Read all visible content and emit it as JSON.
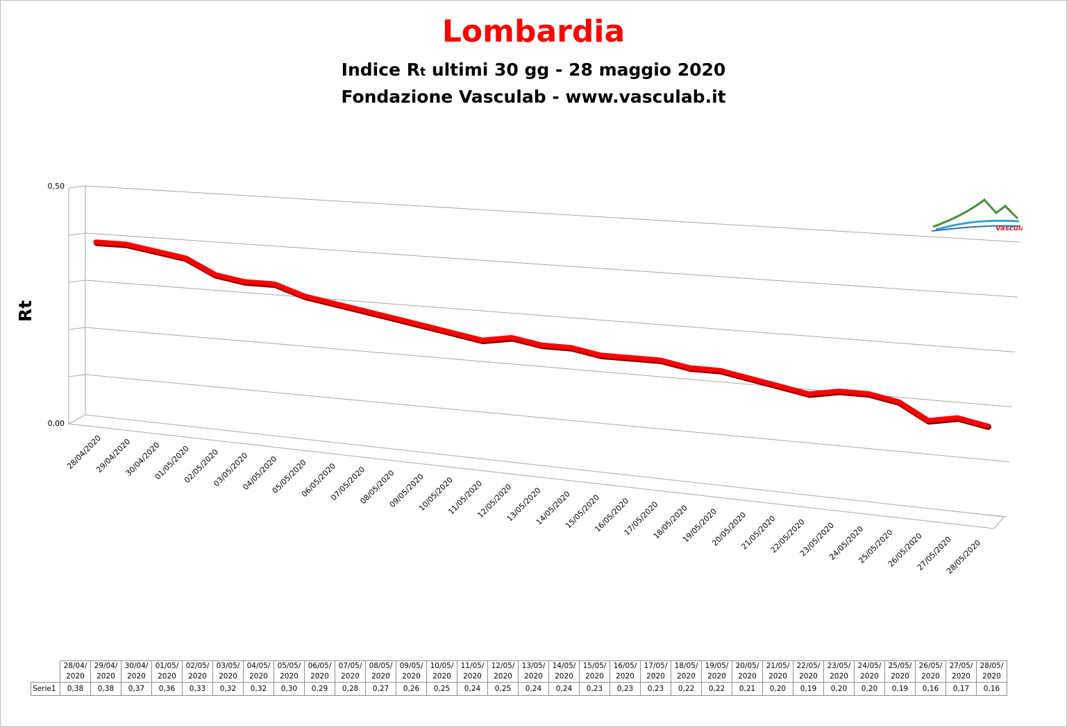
{
  "header": {
    "title": "Lombardia",
    "subtitle_pre": "Indice R",
    "subtitle_sub": "t",
    "subtitle_post": " ultimi 30 gg - 28 maggio 2020",
    "subtitle2": "Fondazione Vasculab - www.vasculab.it"
  },
  "logo": {
    "text": "Vasculab"
  },
  "colors": {
    "title": "#ff0000",
    "series": "#ff0000",
    "grid": "#a6a6a6"
  },
  "chart_data": {
    "type": "line",
    "title": "Lombardia",
    "ylabel": "Rt",
    "xlabel": "",
    "ylim": [
      0,
      0.5
    ],
    "ytick_labels": [
      "0,00",
      "0,50"
    ],
    "grid": true,
    "categories": [
      "28/04/2020",
      "29/04/2020",
      "30/04/2020",
      "01/05/2020",
      "02/05/2020",
      "03/05/2020",
      "04/05/2020",
      "05/05/2020",
      "06/05/2020",
      "07/05/2020",
      "08/05/2020",
      "09/05/2020",
      "10/05/2020",
      "11/05/2020",
      "12/05/2020",
      "13/05/2020",
      "14/05/2020",
      "15/05/2020",
      "16/05/2020",
      "17/05/2020",
      "18/05/2020",
      "19/05/2020",
      "20/05/2020",
      "21/05/2020",
      "22/05/2020",
      "23/05/2020",
      "24/05/2020",
      "25/05/2020",
      "26/05/2020",
      "27/05/2020",
      "28/05/2020"
    ],
    "series": [
      {
        "name": "Serie1",
        "values": [
          0.38,
          0.38,
          0.37,
          0.36,
          0.33,
          0.32,
          0.32,
          0.3,
          0.29,
          0.28,
          0.27,
          0.26,
          0.25,
          0.24,
          0.25,
          0.24,
          0.24,
          0.23,
          0.23,
          0.23,
          0.22,
          0.22,
          0.21,
          0.2,
          0.19,
          0.2,
          0.2,
          0.19,
          0.16,
          0.17,
          0.16
        ],
        "labels": [
          "0,38",
          "0,38",
          "0,37",
          "0,36",
          "0,33",
          "0,32",
          "0,32",
          "0,30",
          "0,29",
          "0,28",
          "0,27",
          "0,26",
          "0,25",
          "0,24",
          "0,25",
          "0,24",
          "0,24",
          "0,23",
          "0,23",
          "0,23",
          "0,22",
          "0,22",
          "0,21",
          "0,20",
          "0,19",
          "0,20",
          "0,20",
          "0,19",
          "0,16",
          "0,17",
          "0,16"
        ]
      }
    ]
  },
  "table": {
    "header_top": [
      "28/04/",
      "29/04/",
      "30/04/",
      "01/05/",
      "02/05/",
      "03/05/",
      "04/05/",
      "05/05/",
      "06/05/",
      "07/05/",
      "08/05/",
      "09/05/",
      "10/05/",
      "11/05/",
      "12/05/",
      "13/05/",
      "14/05/",
      "15/05/",
      "16/05/",
      "17/05/",
      "18/05/",
      "19/05/",
      "20/05/",
      "21/05/",
      "22/05/",
      "23/05/",
      "24/05/",
      "25/05/",
      "26/05/",
      "27/05/",
      "28/05/"
    ],
    "header_year": "2020",
    "row_label": "Serie1"
  }
}
